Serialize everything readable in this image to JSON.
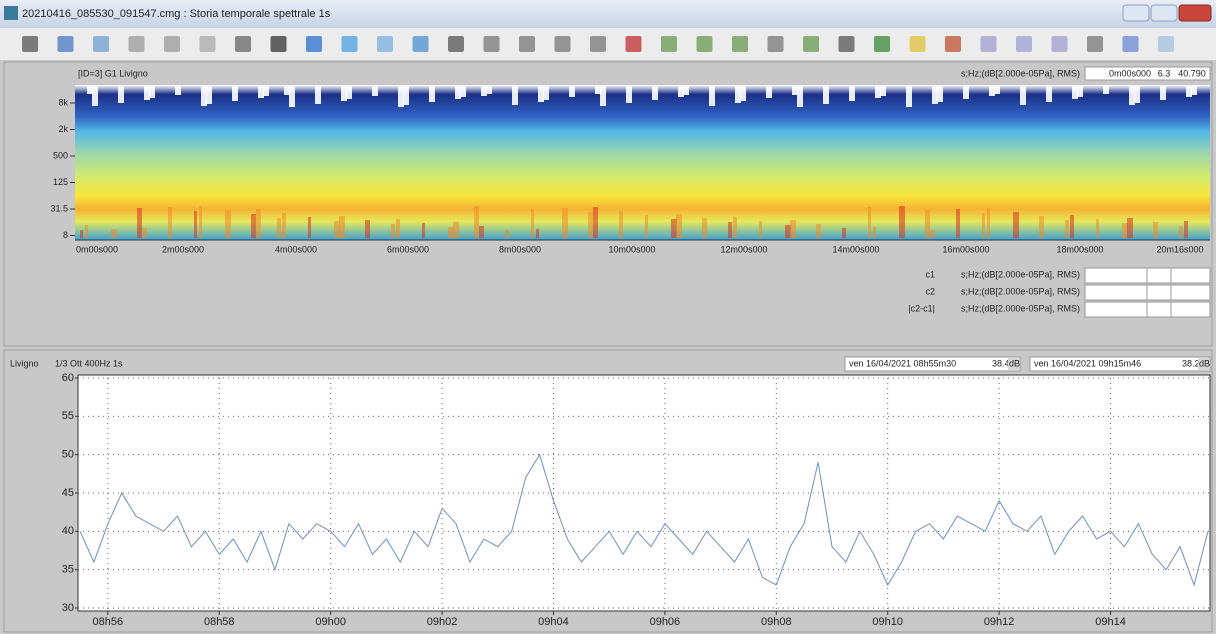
{
  "window": {
    "title": "20210416_085530_091547.cmg : Storia temporale spettrale 1s"
  },
  "spectrogram": {
    "label": "[ID=3] G1 Livigno",
    "units": "s;Hz;(dB[2.000e-05Pa], RMS)",
    "fields": [
      "0m00s000",
      "6.3",
      "40.790"
    ],
    "yticks": [
      "8k",
      "2k",
      "500",
      "125",
      "31.5",
      "8"
    ],
    "xticks": [
      "0m00s000",
      "2m00s000",
      "4m00s000",
      "6m00s000",
      "8m00s000",
      "10m00s000",
      "12m00s000",
      "14m00s000",
      "16m00s000",
      "18m00s000",
      "20m16s000"
    ]
  },
  "cursors": {
    "rows": [
      {
        "name": "c1",
        "units": "s;Hz;(dB[2.000e-05Pa], RMS)"
      },
      {
        "name": "c2",
        "units": "s;Hz;(dB[2.000e-05Pa], RMS)"
      },
      {
        "name": "|c2-c1|",
        "units": "s;Hz;(dB[2.000e-05Pa], RMS)"
      }
    ]
  },
  "readouts": [
    {
      "time": "ven 16/04/2021 08h55m30",
      "value": "38.4",
      "unit": "dB"
    },
    {
      "time": "ven 16/04/2021 09h15m46",
      "value": "38.2",
      "unit": "dB"
    }
  ],
  "chart_data": {
    "type": "line",
    "title": "Livigno",
    "subtitle": "1/3 Ott 400Hz 1s",
    "categories": [
      null,
      null,
      "08h56",
      null,
      null,
      null,
      null,
      null,
      null,
      null,
      "08h58",
      null,
      null,
      null,
      null,
      null,
      null,
      null,
      "09h00",
      null,
      null,
      null,
      null,
      null,
      null,
      null,
      "09h02",
      null,
      null,
      null,
      null,
      null,
      null,
      null,
      "09h04",
      null,
      null,
      null,
      null,
      null,
      null,
      null,
      "09h06",
      null,
      null,
      null,
      null,
      null,
      null,
      null,
      "09h08",
      null,
      null,
      null,
      null,
      null,
      null,
      null,
      "09h10",
      null,
      null,
      null,
      null,
      null,
      null,
      null,
      "09h12",
      null,
      null,
      null,
      null,
      null,
      null,
      null,
      "09h14",
      null,
      null,
      null,
      null,
      null,
      null,
      null
    ],
    "series": [
      {
        "color": "#6d8fc0",
        "values": [
          40,
          36,
          41,
          45,
          42,
          41,
          40,
          42,
          38,
          40,
          37,
          39,
          36,
          40,
          35,
          41,
          39,
          41,
          40,
          38,
          41,
          37,
          39,
          36,
          40,
          38,
          43,
          41,
          36,
          39,
          38,
          40,
          47,
          50,
          44,
          39,
          36,
          38,
          40,
          37,
          40,
          38,
          41,
          39,
          37,
          40,
          38,
          36,
          39,
          34,
          33,
          38,
          41,
          49,
          38,
          36,
          40,
          37,
          33,
          36,
          40,
          41,
          39,
          42,
          41,
          40,
          44,
          41,
          40,
          42,
          37,
          40,
          42,
          39,
          40,
          38,
          41,
          37,
          35,
          38,
          33,
          40
        ]
      }
    ],
    "ylim": [
      30,
      60
    ],
    "yticks": [
      30,
      35,
      40,
      45,
      50,
      55,
      60
    ],
    "grid": true
  }
}
